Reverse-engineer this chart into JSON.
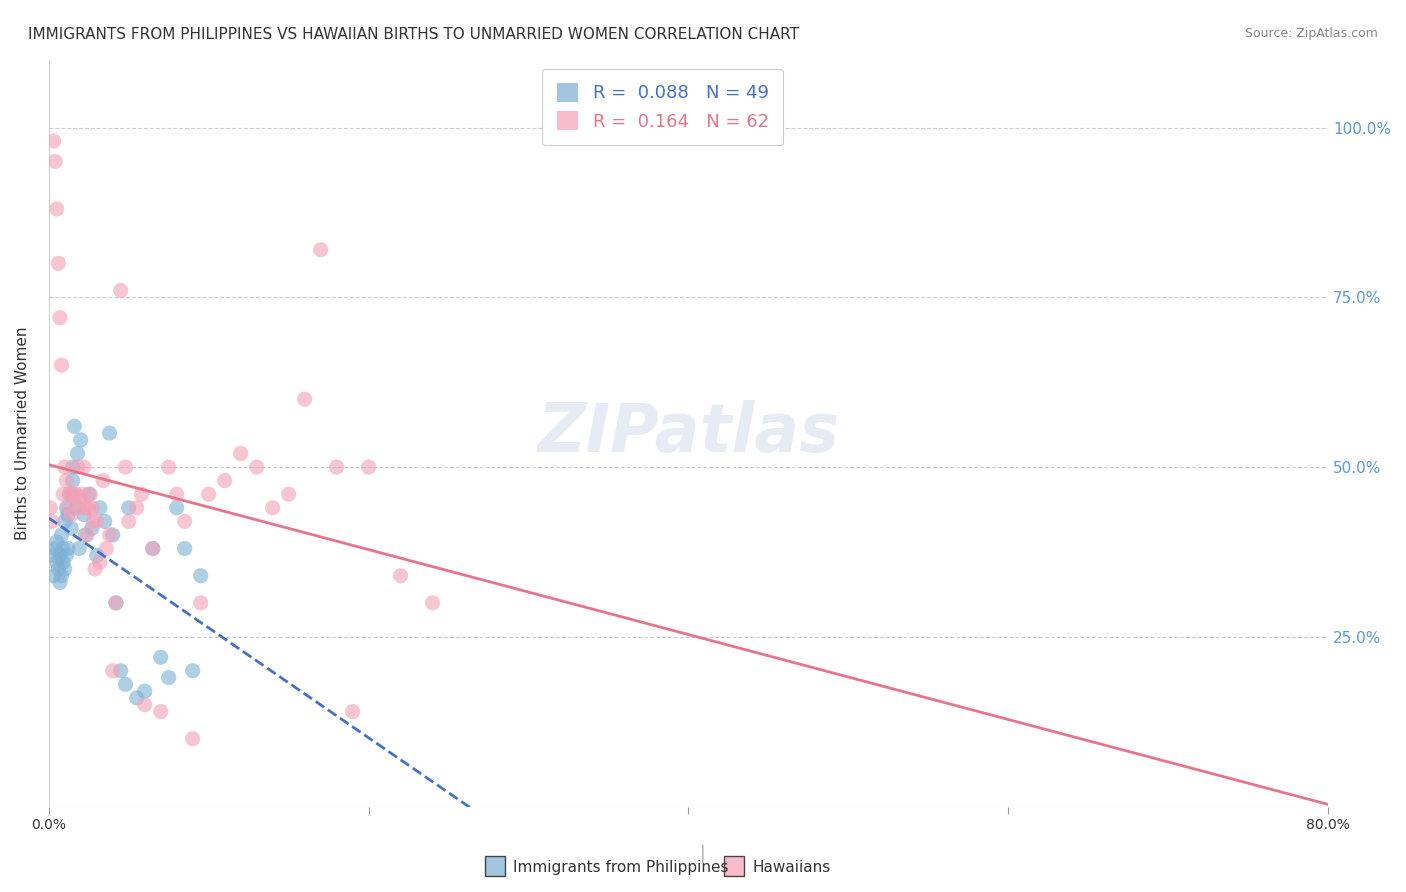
{
  "title": "IMMIGRANTS FROM PHILIPPINES VS HAWAIIAN BIRTHS TO UNMARRIED WOMEN CORRELATION CHART",
  "source": "Source: ZipAtlas.com",
  "ylabel": "Births to Unmarried Women",
  "legend_entries": [
    {
      "label": "Immigrants from Philippines",
      "R": "0.088",
      "N": "49",
      "color": "#7bafd4"
    },
    {
      "label": "Hawaiians",
      "R": "0.164",
      "N": "62",
      "color": "#f4a0b5"
    }
  ],
  "watermark": "ZIPatlas",
  "blue_scatter_x": [
    0.002,
    0.003,
    0.004,
    0.005,
    0.005,
    0.006,
    0.007,
    0.007,
    0.008,
    0.008,
    0.009,
    0.009,
    0.01,
    0.01,
    0.011,
    0.011,
    0.012,
    0.012,
    0.013,
    0.014,
    0.015,
    0.015,
    0.016,
    0.017,
    0.018,
    0.019,
    0.02,
    0.022,
    0.023,
    0.025,
    0.027,
    0.03,
    0.032,
    0.035,
    0.038,
    0.04,
    0.042,
    0.045,
    0.048,
    0.05,
    0.055,
    0.06,
    0.065,
    0.07,
    0.075,
    0.08,
    0.085,
    0.09,
    0.095
  ],
  "blue_scatter_y": [
    0.37,
    0.34,
    0.38,
    0.36,
    0.39,
    0.35,
    0.37,
    0.33,
    0.4,
    0.34,
    0.38,
    0.36,
    0.42,
    0.35,
    0.44,
    0.37,
    0.43,
    0.38,
    0.46,
    0.41,
    0.48,
    0.5,
    0.56,
    0.44,
    0.52,
    0.38,
    0.54,
    0.43,
    0.4,
    0.46,
    0.41,
    0.37,
    0.44,
    0.42,
    0.55,
    0.4,
    0.3,
    0.2,
    0.18,
    0.44,
    0.16,
    0.17,
    0.38,
    0.22,
    0.19,
    0.44,
    0.38,
    0.2,
    0.34
  ],
  "pink_scatter_x": [
    0.001,
    0.002,
    0.003,
    0.004,
    0.005,
    0.006,
    0.007,
    0.008,
    0.009,
    0.01,
    0.011,
    0.012,
    0.013,
    0.014,
    0.015,
    0.016,
    0.017,
    0.018,
    0.019,
    0.02,
    0.021,
    0.022,
    0.023,
    0.024,
    0.025,
    0.026,
    0.027,
    0.028,
    0.029,
    0.03,
    0.032,
    0.034,
    0.036,
    0.038,
    0.04,
    0.042,
    0.045,
    0.048,
    0.05,
    0.055,
    0.058,
    0.06,
    0.065,
    0.07,
    0.075,
    0.08,
    0.085,
    0.09,
    0.095,
    0.1,
    0.11,
    0.12,
    0.13,
    0.14,
    0.15,
    0.16,
    0.17,
    0.18,
    0.19,
    0.2,
    0.22,
    0.24
  ],
  "pink_scatter_y": [
    0.44,
    0.42,
    0.98,
    0.95,
    0.88,
    0.8,
    0.72,
    0.65,
    0.46,
    0.5,
    0.48,
    0.44,
    0.46,
    0.43,
    0.46,
    0.46,
    0.46,
    0.5,
    0.44,
    0.45,
    0.46,
    0.5,
    0.44,
    0.4,
    0.44,
    0.46,
    0.44,
    0.42,
    0.35,
    0.42,
    0.36,
    0.48,
    0.38,
    0.4,
    0.2,
    0.3,
    0.76,
    0.5,
    0.42,
    0.44,
    0.46,
    0.15,
    0.38,
    0.14,
    0.5,
    0.46,
    0.42,
    0.1,
    0.3,
    0.46,
    0.48,
    0.52,
    0.5,
    0.44,
    0.46,
    0.6,
    0.82,
    0.5,
    0.14,
    0.5,
    0.34,
    0.3
  ],
  "blue_color": "#7bafd4",
  "pink_color": "#f4a0b5",
  "blue_line_color": "#4472c4",
  "pink_line_color": "#e8748a",
  "background_color": "#ffffff",
  "grid_color": "#cccccc",
  "title_fontsize": 11,
  "source_fontsize": 9,
  "watermark_color": "#d0d8e8",
  "watermark_fontsize": 48,
  "right_axis_color": "#5b9bd5"
}
